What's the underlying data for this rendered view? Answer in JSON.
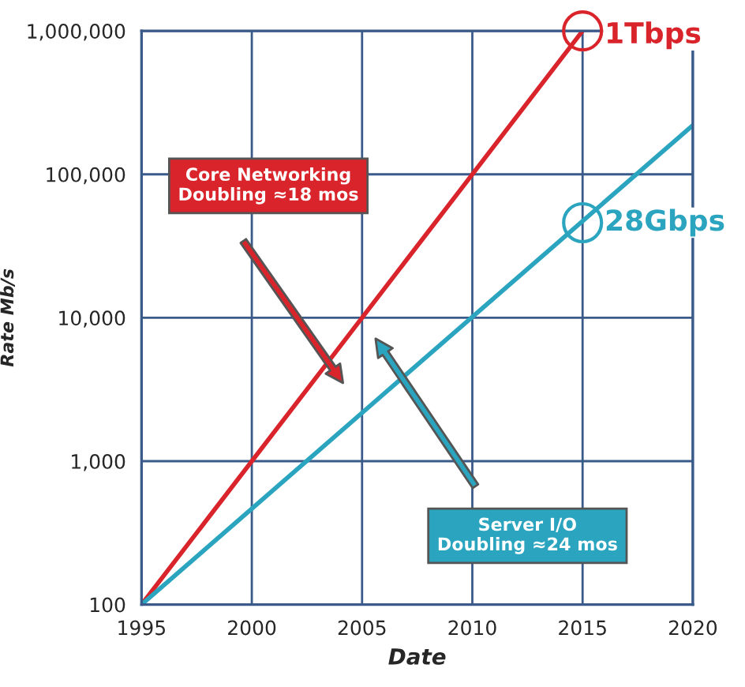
{
  "chart_data": {
    "type": "line",
    "xlabel": "Date",
    "ylabel": "Rate Mb/s",
    "log": "y",
    "grid": true,
    "line_style": "solid",
    "xlim": [
      1995,
      2020
    ],
    "xticks": [
      1995,
      2000,
      2005,
      2010,
      2015,
      2020
    ],
    "ylim": [
      100,
      1000000
    ],
    "yticks": [
      100,
      {
        "value": 1000,
        "label": "1,000"
      },
      {
        "value": 10000,
        "label": "10,000"
      },
      {
        "value": 100000,
        "label": "100,000"
      },
      {
        "value": 1000000,
        "label": "1,000,000"
      }
    ],
    "series": [
      {
        "color": "#d9242b",
        "x": [
          1995,
          2015
        ],
        "values": [
          100,
          1000000
        ]
      },
      {
        "color": "#2ba5bf",
        "x": [
          1995,
          2020
        ],
        "values": [
          100,
          220000
        ]
      }
    ],
    "annotations": [
      "Core Networking\nDoubling ≈18 mos",
      "Server I/O\nDoubling ≈24 mos",
      {
        "text": "1Tbps",
        "x": 2015,
        "y": 1000000
      },
      {
        "text": "28Gbps",
        "x": 2015,
        "y": 46000
      }
    ]
  }
}
